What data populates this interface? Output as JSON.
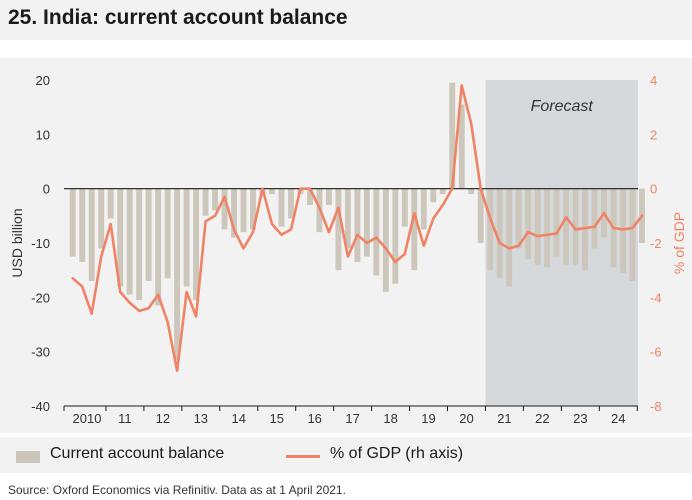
{
  "title": "25. India: current account balance",
  "source": "Source: Oxford Economics via Refinitiv. Data as at 1 April 2021.",
  "colors": {
    "bars": "#cdc7bb",
    "line": "#ee8365",
    "forecast_shade": "#d5d9dc",
    "axis_text_left": "#333333",
    "axis_text_right": "#ee8365"
  },
  "chart_data": {
    "type": "bar",
    "title": "25. India: current account balance",
    "ylabel": "USD billion",
    "ylabel_right": "% of GDP",
    "ylim": [
      -40,
      20
    ],
    "ylim_right": [
      -8,
      4
    ],
    "yticks": [
      "20",
      "10",
      "0",
      "-10",
      "-20",
      "-30",
      "-40"
    ],
    "yticks_right": [
      "4",
      "2",
      "0",
      "-2",
      "-4",
      "-6",
      "-8"
    ],
    "xticks": [
      "2010",
      "11",
      "12",
      "13",
      "14",
      "15",
      "16",
      "17",
      "18",
      "19",
      "20",
      "21",
      "22",
      "23",
      "24"
    ],
    "forecast_label": "Forecast",
    "forecast_start": "2021 Q1",
    "series": [
      {
        "name": "Current account balance",
        "axis": "left",
        "type": "bar",
        "values": [
          -12.5,
          -13.5,
          -17,
          -11,
          -5.5,
          -18,
          -19.5,
          -20.5,
          -17,
          -21.5,
          -16.5,
          -31.5,
          -18,
          -20.5,
          -5,
          -4,
          -7.5,
          -9,
          -8,
          -7.5,
          -1,
          -1,
          -7,
          -5.5,
          -1,
          -3,
          -8,
          -3,
          -15,
          -11,
          -13.5,
          -12.5,
          -16,
          -19,
          -17.5,
          -7,
          -15,
          -7.5,
          -2.5,
          -1,
          19.5,
          15.5,
          -1,
          -10,
          -15,
          -16.5,
          -18,
          -11,
          -13,
          -14,
          -14.5,
          -12.5,
          -14,
          -14,
          -15,
          -11,
          -9,
          -14.5,
          -15.5,
          -17,
          -10
        ]
      },
      {
        "name": "% of GDP (rh axis)",
        "axis": "right",
        "type": "line",
        "values": [
          -3.3,
          -3.6,
          -4.6,
          -2.5,
          -1.3,
          -3.8,
          -4.2,
          -4.5,
          -4.4,
          -3.9,
          -4.9,
          -6.7,
          -3.8,
          -4.7,
          -1.2,
          -1.0,
          -0.3,
          -1.5,
          -2.2,
          -1.6,
          0.0,
          -1.3,
          -1.7,
          -1.5,
          0.0,
          0.0,
          -0.7,
          -1.6,
          -0.7,
          -2.5,
          -1.7,
          -2.0,
          -1.8,
          -2.2,
          -2.7,
          -2.4,
          -0.9,
          -2.1,
          -1.1,
          -0.6,
          0.0,
          3.8,
          2.4,
          0.0,
          -1.1,
          -2.0,
          -2.2,
          -2.1,
          -1.6,
          -1.75,
          -1.7,
          -1.65,
          -1.05,
          -1.5,
          -1.45,
          -1.4,
          -0.9,
          -1.45,
          -1.5,
          -1.45,
          -1.0
        ]
      }
    ]
  },
  "legend": {
    "bar_label": "Current account balance",
    "line_label": "% of GDP (rh axis)"
  }
}
